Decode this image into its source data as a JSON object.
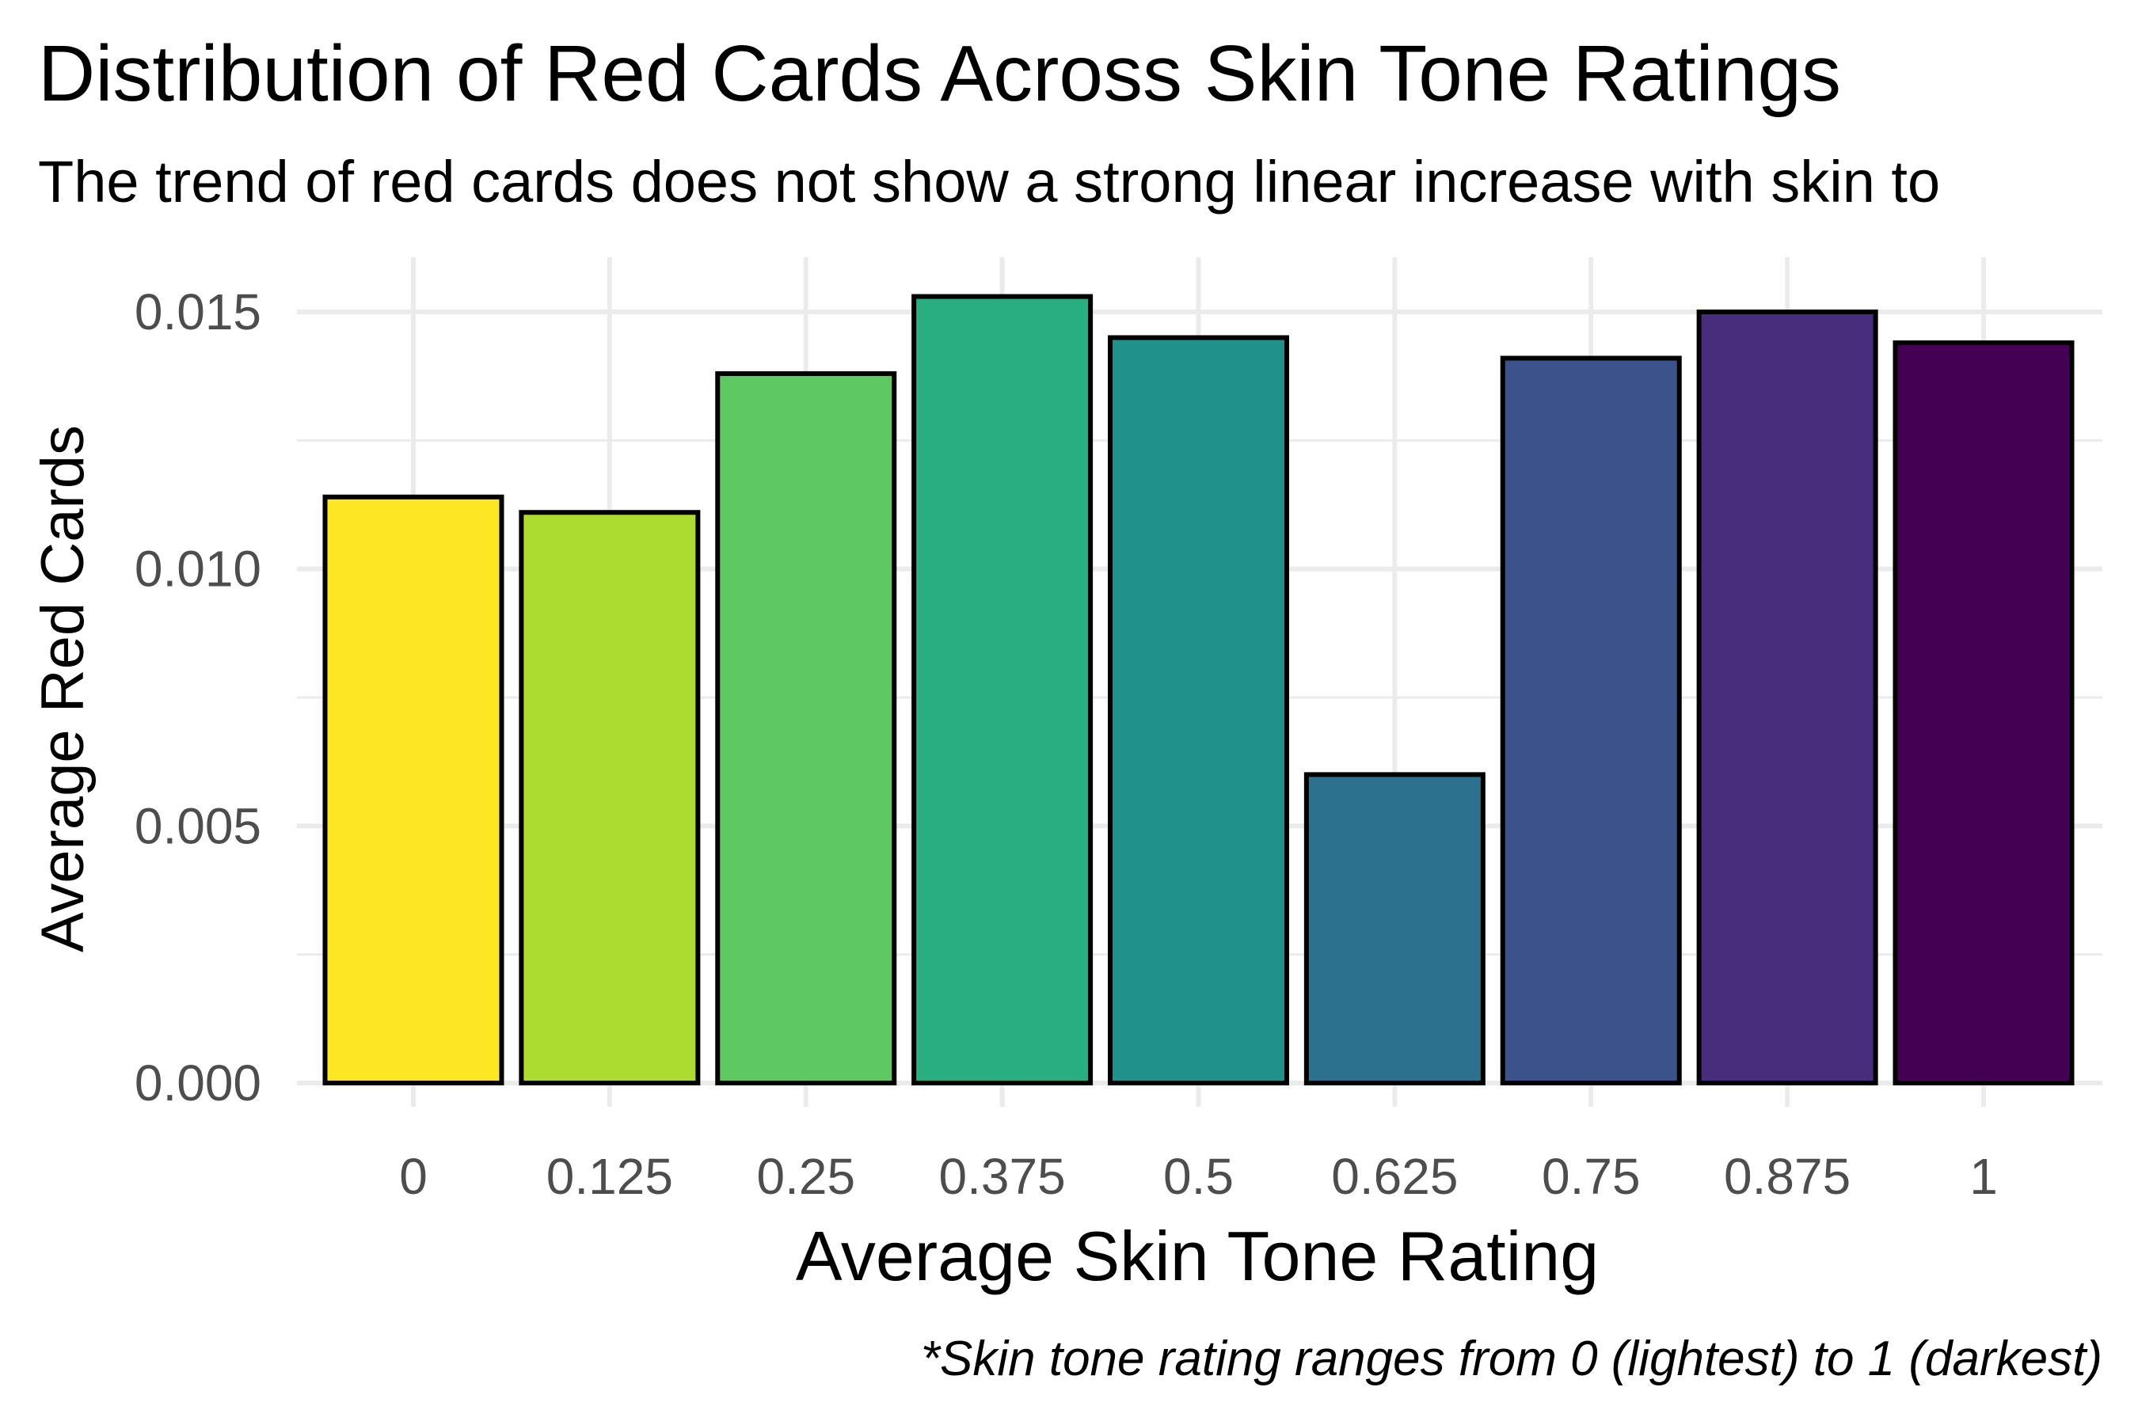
{
  "chart_data": {
    "type": "bar",
    "title": "Distribution of Red Cards Across Skin Tone Ratings",
    "subtitle": "The trend of red cards does not show a strong linear increase with skin to",
    "xlabel": "Average Skin Tone Rating",
    "ylabel": "Average Red Cards",
    "caption": "*Skin tone rating ranges from 0 (lightest) to 1 (darkest)",
    "categories": [
      "0",
      "0.125",
      "0.25",
      "0.375",
      "0.5",
      "0.625",
      "0.75",
      "0.875",
      "1"
    ],
    "values": [
      0.0114,
      0.0111,
      0.0138,
      0.0153,
      0.0145,
      0.006,
      0.0141,
      0.015,
      0.0144
    ],
    "colors": [
      "#fde725",
      "#addc30",
      "#5ec962",
      "#28ae80",
      "#21918c",
      "#2c728e",
      "#3b528b",
      "#472d7b",
      "#440154"
    ],
    "y_ticks": [
      "0.000",
      "0.005",
      "0.010",
      "0.015"
    ],
    "y_tick_values": [
      0,
      0.005,
      0.01,
      0.015
    ],
    "ylim": [
      0,
      0.016
    ],
    "grid": true,
    "legend": "none"
  }
}
